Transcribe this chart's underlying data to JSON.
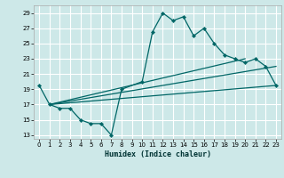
{
  "xlabel": "Humidex (Indice chaleur)",
  "bg_color": "#cde8e8",
  "grid_color": "#ffffff",
  "line_color": "#006666",
  "xlim": [
    -0.5,
    23.5
  ],
  "ylim": [
    12.5,
    30.0
  ],
  "xticks": [
    0,
    1,
    2,
    3,
    4,
    5,
    6,
    7,
    8,
    9,
    10,
    11,
    12,
    13,
    14,
    15,
    16,
    17,
    18,
    19,
    20,
    21,
    22,
    23
  ],
  "yticks": [
    13,
    15,
    17,
    19,
    21,
    23,
    25,
    27,
    29
  ],
  "line1_x": [
    0,
    1,
    2,
    3,
    4,
    5,
    6,
    7,
    8,
    10,
    11,
    12,
    13,
    14,
    15,
    16,
    17,
    18,
    19,
    20,
    21,
    22,
    23
  ],
  "line1_y": [
    19.5,
    17.0,
    16.5,
    16.5,
    15.0,
    14.5,
    14.5,
    13.0,
    19.0,
    20.0,
    26.5,
    29.0,
    28.0,
    28.5,
    26.0,
    27.0,
    25.0,
    23.5,
    23.0,
    22.5,
    23.0,
    22.0,
    19.5
  ],
  "line2_x": [
    1,
    20
  ],
  "line2_y": [
    17.0,
    23.0
  ],
  "line3_x": [
    1,
    23
  ],
  "line3_y": [
    17.0,
    22.0
  ],
  "line4_x": [
    1,
    23
  ],
  "line4_y": [
    17.0,
    19.5
  ]
}
